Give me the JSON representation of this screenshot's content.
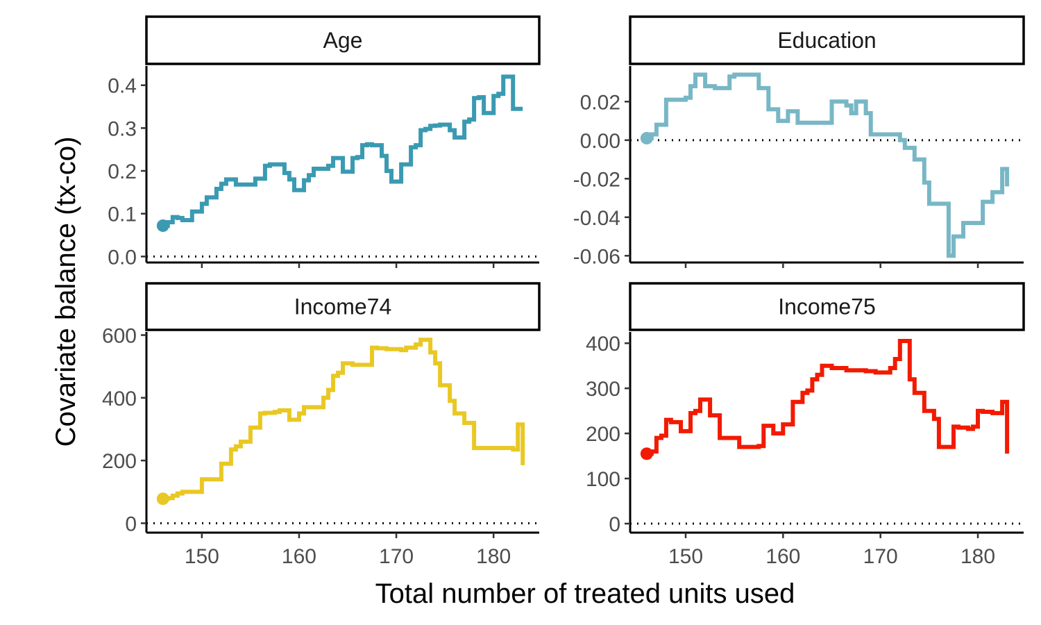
{
  "chart_data": {
    "type": "line",
    "step": true,
    "xlabel": "Total number of treated units used",
    "ylabel": "Covariate balance (tx-co)",
    "reference_line": {
      "y": 0,
      "style": "dotted"
    },
    "facets": [
      {
        "title": "Age",
        "color": "#3A9AB2",
        "xlim": [
          144.3,
          184.7
        ],
        "ylim": [
          -0.014,
          0.445
        ],
        "xticks": [
          150,
          160,
          170,
          180
        ],
        "yticks": [
          0.0,
          0.1,
          0.2,
          0.3,
          0.4
        ],
        "ytick_labels": [
          "0.0",
          "0.1",
          "0.2",
          "0.3",
          "0.4"
        ],
        "x": [
          146,
          146.5,
          147,
          147.5,
          148,
          148.5,
          149,
          149.5,
          150,
          150.5,
          151,
          151.5,
          152,
          152.5,
          153,
          153.5,
          154,
          154.5,
          155,
          155.5,
          156,
          156.5,
          157,
          157.5,
          158,
          158.5,
          159,
          159.5,
          160,
          160.5,
          161,
          161.5,
          162,
          162.5,
          163,
          163.5,
          164,
          164.5,
          165,
          165.5,
          166,
          166.5,
          167,
          167.5,
          168,
          168.5,
          169,
          169.5,
          170,
          170.5,
          171,
          171.5,
          172,
          172.5,
          173,
          173.5,
          174,
          174.5,
          175,
          175.5,
          176,
          176.5,
          177,
          177.5,
          178,
          178.5,
          179,
          179.5,
          180,
          180.5,
          181,
          181.5,
          182,
          182.5,
          183
        ],
        "y": [
          0.072,
          0.08,
          0.092,
          0.09,
          0.085,
          0.085,
          0.105,
          0.105,
          0.123,
          0.138,
          0.138,
          0.158,
          0.17,
          0.18,
          0.18,
          0.168,
          0.168,
          0.168,
          0.168,
          0.182,
          0.182,
          0.212,
          0.215,
          0.215,
          0.215,
          0.195,
          0.18,
          0.155,
          0.155,
          0.178,
          0.19,
          0.205,
          0.205,
          0.205,
          0.212,
          0.23,
          0.23,
          0.198,
          0.198,
          0.23,
          0.232,
          0.26,
          0.262,
          0.26,
          0.26,
          0.235,
          0.2,
          0.175,
          0.175,
          0.215,
          0.215,
          0.255,
          0.26,
          0.295,
          0.298,
          0.305,
          0.306,
          0.308,
          0.308,
          0.295,
          0.278,
          0.278,
          0.315,
          0.32,
          0.37,
          0.372,
          0.335,
          0.335,
          0.375,
          0.38,
          0.42,
          0.42,
          0.345,
          0.345,
          0.345
        ],
        "start_marker": true
      },
      {
        "title": "Education",
        "color": "#78B7C5",
        "xlim": [
          144.3,
          184.7
        ],
        "ylim": [
          -0.0635,
          0.0385
        ],
        "xticks": [
          150,
          160,
          170,
          180
        ],
        "yticks": [
          -0.06,
          -0.04,
          -0.02,
          0.0,
          0.02
        ],
        "ytick_labels": [
          "-0.06",
          "-0.04",
          "-0.02",
          "0.00",
          "0.02"
        ],
        "x": [
          146,
          146.5,
          147,
          147.5,
          148,
          148.5,
          149,
          149.5,
          150,
          150.5,
          151,
          151.5,
          152,
          152.5,
          153,
          153.5,
          154,
          154.5,
          155,
          155.5,
          156,
          156.5,
          157,
          157.5,
          158,
          158.5,
          159,
          159.5,
          160,
          160.5,
          161,
          161.5,
          162,
          162.5,
          163,
          163.5,
          164,
          164.5,
          165,
          165.5,
          166,
          166.5,
          167,
          167.5,
          168,
          168.5,
          169,
          169.5,
          170,
          170.5,
          171,
          171.5,
          172,
          172.5,
          173,
          173.5,
          174,
          174.5,
          175,
          175.5,
          176,
          176.5,
          177,
          177.5,
          178,
          178.5,
          179,
          179.5,
          180,
          180.5,
          181,
          181.5,
          182,
          182.5,
          183
        ],
        "y": [
          0.001,
          0.003,
          0.008,
          0.008,
          0.021,
          0.021,
          0.021,
          0.021,
          0.022,
          0.028,
          0.034,
          0.034,
          0.028,
          0.028,
          0.027,
          0.027,
          0.027,
          0.033,
          0.034,
          0.034,
          0.034,
          0.034,
          0.034,
          0.027,
          0.027,
          0.016,
          0.016,
          0.01,
          0.01,
          0.015,
          0.015,
          0.009,
          0.009,
          0.009,
          0.009,
          0.009,
          0.009,
          0.009,
          0.02,
          0.02,
          0.02,
          0.018,
          0.014,
          0.02,
          0.02,
          0.014,
          0.003,
          0.003,
          0.003,
          0.003,
          0.003,
          0.003,
          0.0,
          -0.004,
          -0.004,
          -0.01,
          -0.01,
          -0.022,
          -0.033,
          -0.033,
          -0.033,
          -0.033,
          -0.06,
          -0.05,
          -0.05,
          -0.043,
          -0.043,
          -0.043,
          -0.043,
          -0.032,
          -0.032,
          -0.027,
          -0.027,
          -0.015,
          -0.024
        ]
      },
      {
        "title": "Income74",
        "color": "#E9C824",
        "xlim": [
          144.3,
          184.7
        ],
        "ylim": [
          -30,
          610
        ],
        "xticks": [
          150,
          160,
          170,
          180
        ],
        "yticks": [
          0,
          200,
          400,
          600
        ],
        "ytick_labels": [
          "0",
          "200",
          "400",
          "600"
        ],
        "x": [
          146,
          146.5,
          147,
          147.5,
          148,
          148.5,
          149,
          149.5,
          150,
          150.5,
          151,
          151.5,
          152,
          152.5,
          153,
          153.5,
          154,
          154.5,
          155,
          155.5,
          156,
          156.5,
          157,
          157.5,
          158,
          158.5,
          159,
          159.5,
          160,
          160.5,
          161,
          161.5,
          162,
          162.5,
          163,
          163.5,
          164,
          164.5,
          165,
          165.5,
          166,
          166.5,
          167,
          167.5,
          168,
          168.5,
          169,
          169.5,
          170,
          170.5,
          171,
          171.5,
          172,
          172.5,
          173,
          173.5,
          174,
          174.5,
          175,
          175.5,
          176,
          176.5,
          177,
          177.5,
          178,
          178.5,
          179,
          179.5,
          180,
          180.5,
          181,
          181.5,
          182,
          182.5,
          183
        ],
        "y": [
          78,
          80,
          88,
          95,
          100,
          100,
          100,
          100,
          140,
          140,
          140,
          140,
          190,
          190,
          235,
          245,
          260,
          260,
          305,
          305,
          350,
          352,
          352,
          355,
          360,
          360,
          330,
          330,
          350,
          370,
          370,
          370,
          370,
          400,
          425,
          470,
          480,
          510,
          510,
          505,
          505,
          505,
          505,
          560,
          558,
          558,
          555,
          555,
          555,
          552,
          560,
          560,
          570,
          585,
          585,
          545,
          510,
          440,
          440,
          390,
          350,
          350,
          320,
          320,
          240,
          240,
          240,
          240,
          240,
          240,
          240,
          240,
          235,
          315,
          185
        ]
      },
      {
        "title": "Income75",
        "color": "#F21A00",
        "xlim": [
          144.3,
          184.7
        ],
        "ylim": [
          -20,
          425
        ],
        "xticks": [
          150,
          160,
          170,
          180
        ],
        "yticks": [
          0,
          100,
          200,
          300,
          400
        ],
        "ytick_labels": [
          "0",
          "100",
          "200",
          "300",
          "400"
        ],
        "x": [
          146,
          146.5,
          147,
          147.5,
          148,
          148.5,
          149,
          149.5,
          150,
          150.5,
          151,
          151.5,
          152,
          152.5,
          153,
          153.5,
          154,
          154.5,
          155,
          155.5,
          156,
          156.5,
          157,
          157.5,
          158,
          158.5,
          159,
          159.5,
          160,
          160.5,
          161,
          161.5,
          162,
          162.5,
          163,
          163.5,
          164,
          164.5,
          165,
          165.5,
          166,
          166.5,
          167,
          167.5,
          168,
          168.5,
          169,
          169.5,
          170,
          170.5,
          171,
          171.5,
          172,
          172.5,
          173,
          173.5,
          174,
          174.5,
          175,
          175.5,
          176,
          176.5,
          177,
          177.5,
          178,
          178.5,
          179,
          179.5,
          180,
          180.5,
          181,
          181.5,
          182,
          182.5,
          183
        ],
        "y": [
          155,
          160,
          190,
          195,
          230,
          225,
          225,
          205,
          205,
          245,
          250,
          275,
          275,
          240,
          240,
          190,
          190,
          190,
          190,
          170,
          170,
          170,
          170,
          172,
          217,
          217,
          200,
          200,
          220,
          220,
          270,
          270,
          290,
          295,
          320,
          330,
          350,
          350,
          345,
          345,
          345,
          340,
          340,
          340,
          340,
          338,
          338,
          335,
          335,
          335,
          345,
          365,
          405,
          405,
          320,
          290,
          290,
          250,
          250,
          232,
          170,
          170,
          170,
          215,
          213,
          213,
          210,
          215,
          250,
          248,
          248,
          245,
          245,
          270,
          155
        ],
        "start_marker": true
      }
    ]
  }
}
